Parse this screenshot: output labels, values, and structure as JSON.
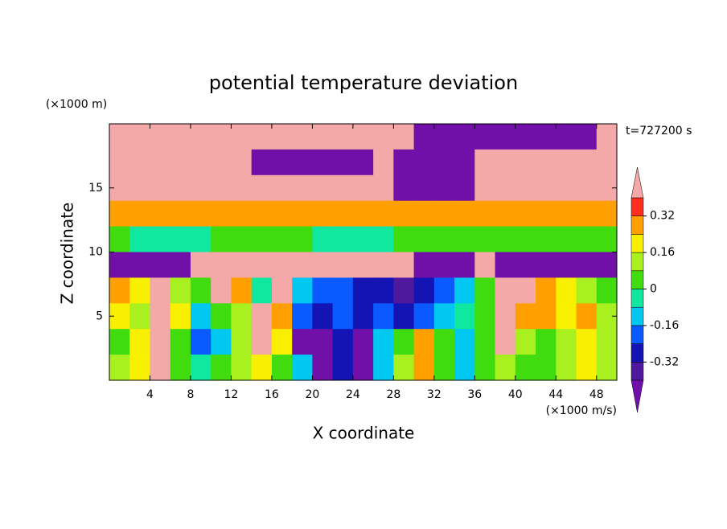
{
  "chart_data": {
    "type": "contour",
    "title": "potential temperature deviation",
    "xlabel": "X coordinate",
    "ylabel": "Z coordinate",
    "x_unit": "(×1000 m/s)",
    "y_unit": "(×1000 m)",
    "annotation": "t=727200 s",
    "xlim": [
      0,
      50
    ],
    "xticks": [
      4,
      8,
      12,
      16,
      20,
      24,
      28,
      32,
      36,
      40,
      44,
      48
    ],
    "ylim": [
      0,
      20
    ],
    "yticks": [
      5,
      10,
      15
    ],
    "x": [
      1,
      3,
      5,
      7,
      9,
      11,
      13,
      15,
      17,
      19,
      21,
      23,
      25,
      27,
      29,
      31,
      33,
      35,
      37,
      39,
      41,
      43,
      45,
      47,
      49
    ],
    "z": [
      19,
      17,
      15,
      13,
      11,
      9,
      7,
      5,
      3,
      1
    ],
    "field": [
      [
        0.5,
        0.5,
        0.5,
        0.5,
        0.5,
        0.5,
        0.5,
        0.5,
        0.5,
        0.5,
        0.5,
        0.5,
        0.5,
        0.5,
        0.5,
        -0.5,
        -0.5,
        -0.5,
        -0.5,
        -0.5,
        -0.5,
        -0.5,
        -0.5,
        -0.5,
        0.5
      ],
      [
        0.5,
        0.5,
        0.5,
        0.5,
        0.5,
        0.5,
        0.5,
        -0.5,
        -0.5,
        -0.5,
        -0.5,
        -0.5,
        -0.5,
        0.5,
        -0.5,
        -0.5,
        -0.5,
        -0.5,
        0.5,
        0.5,
        0.5,
        0.5,
        0.5,
        0.5,
        0.5
      ],
      [
        0.5,
        0.5,
        0.5,
        0.5,
        0.5,
        0.5,
        0.5,
        0.5,
        0.5,
        0.5,
        0.5,
        0.5,
        0.5,
        0.5,
        -0.5,
        -0.5,
        -0.5,
        -0.5,
        0.5,
        0.5,
        0.5,
        0.5,
        0.5,
        0.5,
        0.5
      ],
      [
        0.28,
        0.28,
        0.28,
        0.28,
        0.28,
        0.28,
        0.28,
        0.28,
        0.28,
        0.28,
        0.28,
        0.28,
        0.28,
        0.28,
        0.28,
        0.28,
        0.28,
        0.28,
        0.28,
        0.28,
        0.28,
        0.28,
        0.28,
        0.28,
        0.28
      ],
      [
        0.04,
        -0.04,
        -0.04,
        -0.04,
        -0.04,
        0.04,
        0.04,
        0.04,
        0.04,
        0.04,
        -0.04,
        -0.04,
        -0.04,
        -0.04,
        0.04,
        0.04,
        0.04,
        0.04,
        0.04,
        0.04,
        0.04,
        0.04,
        0.04,
        0.04,
        0.04
      ],
      [
        -0.5,
        -0.5,
        -0.5,
        -0.5,
        0.5,
        0.5,
        0.5,
        0.5,
        0.5,
        0.5,
        0.5,
        0.5,
        0.5,
        0.5,
        0.5,
        -0.5,
        -0.5,
        -0.5,
        0.5,
        -0.5,
        -0.5,
        -0.5,
        -0.5,
        -0.5,
        -0.5
      ],
      [
        0.3,
        0.2,
        0.5,
        0.1,
        0.05,
        0.5,
        0.3,
        -0.05,
        0.5,
        -0.1,
        -0.2,
        -0.2,
        -0.3,
        -0.3,
        -0.35,
        -0.3,
        -0.2,
        -0.1,
        0.0,
        0.5,
        0.5,
        0.3,
        0.2,
        0.1,
        0.05
      ],
      [
        0.2,
        0.1,
        0.5,
        0.2,
        -0.1,
        0.0,
        0.1,
        0.5,
        0.3,
        -0.2,
        -0.3,
        -0.2,
        -0.25,
        -0.2,
        -0.3,
        -0.2,
        -0.1,
        -0.05,
        0.0,
        0.5,
        0.3,
        0.3,
        0.2,
        0.3,
        0.1
      ],
      [
        0.05,
        0.2,
        0.5,
        0.0,
        -0.2,
        -0.1,
        0.1,
        0.5,
        0.2,
        -0.5,
        -0.5,
        -0.3,
        -0.5,
        -0.1,
        0.0,
        0.3,
        0.0,
        -0.1,
        0.0,
        0.4,
        0.1,
        0.0,
        0.1,
        0.2,
        0.1
      ],
      [
        0.1,
        0.2,
        0.5,
        0.0,
        -0.05,
        0.0,
        0.1,
        0.2,
        0.0,
        -0.1,
        -0.5,
        -0.3,
        -0.5,
        -0.1,
        0.1,
        0.3,
        0.0,
        -0.1,
        0.05,
        0.1,
        0.0,
        0.05,
        0.1,
        0.2,
        0.1
      ]
    ],
    "levels": [
      -0.4,
      -0.32,
      -0.24,
      -0.16,
      -0.08,
      0,
      0.08,
      0.16,
      0.24,
      0.32,
      0.4
    ],
    "colors": [
      "#7010a8",
      "#50189c",
      "#1414b4",
      "#0a5aff",
      "#00c8f0",
      "#10e8a0",
      "#40dc10",
      "#a8f020",
      "#f8f000",
      "#ffa000",
      "#ff3020",
      "#f4a8a8"
    ],
    "cbar_ticks": [
      -0.32,
      -0.16,
      0,
      0.16,
      0.32
    ]
  }
}
